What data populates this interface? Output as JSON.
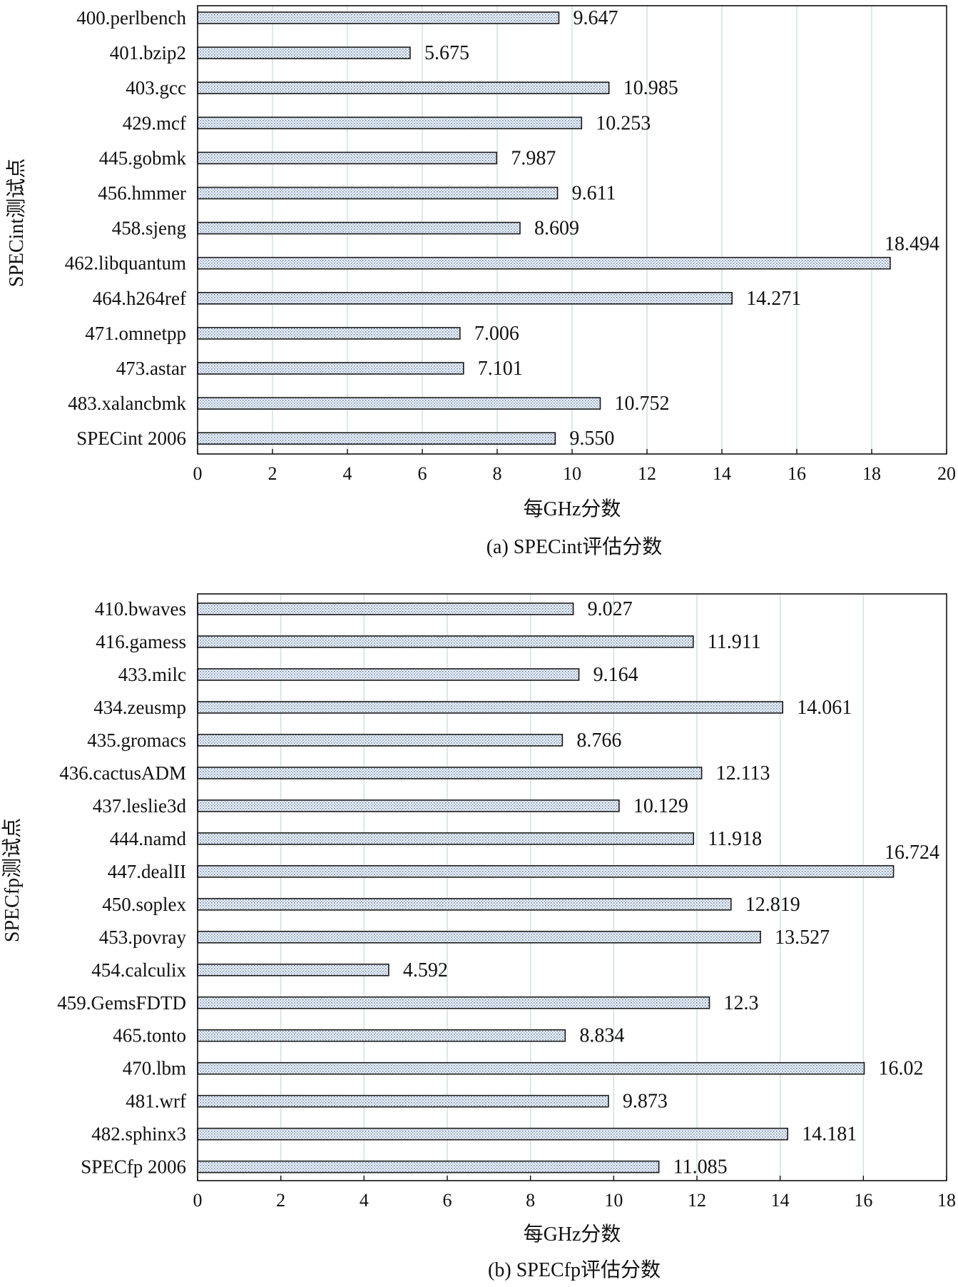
{
  "chart_data": [
    {
      "type": "bar",
      "orientation": "horizontal",
      "categories": [
        "400.perlbench",
        "401.bzip2",
        "403.gcc",
        "429.mcf",
        "445.gobmk",
        "456.hmmer",
        "458.sjeng",
        "462.libquantum",
        "464.h264ref",
        "471.omnetpp",
        "473.astar",
        "483.xalancbmk",
        "SPECint 2006"
      ],
      "values": [
        9.647,
        5.675,
        10.985,
        10.253,
        7.987,
        9.611,
        8.609,
        18.494,
        14.271,
        7.006,
        7.101,
        10.752,
        9.55
      ],
      "value_labels": [
        "9.647",
        "5.675",
        "10.985",
        "10.253",
        "7.987",
        "9.611",
        "8.609",
        "18.494",
        "14.271",
        "7.006",
        "7.101",
        "10.752",
        "9.550"
      ],
      "xlabel": "每GHz分数",
      "ylabel": "SPECint测试点",
      "caption": "(a)  SPECint评估分数",
      "xlim": [
        0,
        20
      ],
      "xticks": [
        0,
        2,
        4,
        6,
        8,
        10,
        12,
        14,
        16,
        18,
        20
      ],
      "grid": "vertical",
      "bar_fill": "dotted-light-blue",
      "grid_color": "#cfe3df"
    },
    {
      "type": "bar",
      "orientation": "horizontal",
      "categories": [
        "410.bwaves",
        "416.gamess",
        "433.milc",
        "434.zeusmp",
        "435.gromacs",
        "436.cactusADM",
        "437.leslie3d",
        "444.namd",
        "447.dealII",
        "450.soplex",
        "453.povray",
        "454.calculix",
        "459.GemsFDTD",
        "465.tonto",
        "470.lbm",
        "481.wrf",
        "482.sphinx3",
        "SPECfp 2006"
      ],
      "values": [
        9.027,
        11.911,
        9.164,
        14.061,
        8.766,
        12.113,
        10.129,
        11.918,
        16.724,
        12.819,
        13.527,
        4.592,
        12.3,
        8.834,
        16.02,
        9.873,
        14.181,
        11.085
      ],
      "value_labels": [
        "9.027",
        "11.911",
        "9.164",
        "14.061",
        "8.766",
        "12.113",
        "10.129",
        "11.918",
        "16.724",
        "12.819",
        "13.527",
        "4.592",
        "12.3",
        "8.834",
        "16.02",
        "9.873",
        "14.181",
        "11.085"
      ],
      "xlabel": "每GHz分数",
      "ylabel": "SPECfp测试点",
      "caption": "(b)  SPECfp评估分数",
      "xlim": [
        0,
        18
      ],
      "xticks": [
        0,
        2,
        4,
        6,
        8,
        10,
        12,
        14,
        16,
        18
      ],
      "grid": "vertical",
      "bar_fill": "dotted-light-blue",
      "grid_color": "#cfe3df"
    }
  ]
}
